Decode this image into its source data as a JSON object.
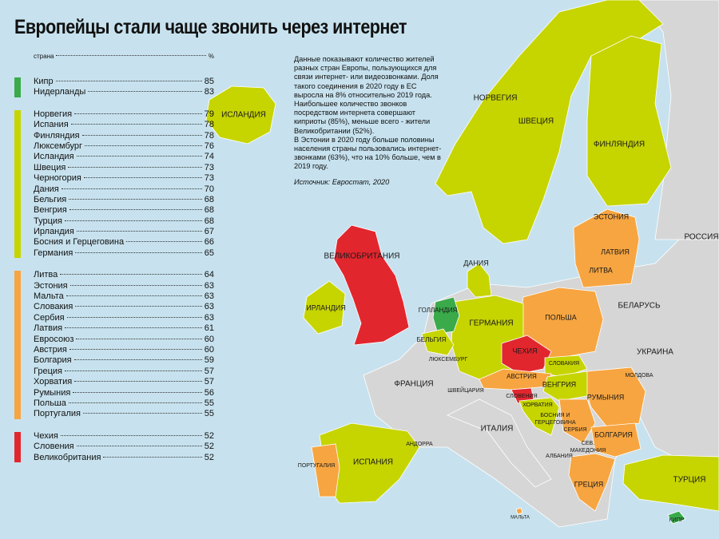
{
  "title": "Европейцы стали чаще звонить через интернет",
  "list": {
    "header": {
      "country": "страна",
      "unit": "%"
    },
    "groups": [
      {
        "color": "#3aaa4a",
        "rows": [
          {
            "country": "Кипр",
            "value": 85
          },
          {
            "country": "Нидерланды",
            "value": 83
          }
        ]
      },
      {
        "color": "#c6d400",
        "rows": [
          {
            "country": "Норвегия",
            "value": 79
          },
          {
            "country": "Испания",
            "value": 78
          },
          {
            "country": "Финляндия",
            "value": 78
          },
          {
            "country": "Люксембург",
            "value": 76
          },
          {
            "country": "Исландия",
            "value": 74
          },
          {
            "country": "Швеция",
            "value": 73
          },
          {
            "country": "Черногория",
            "value": 73
          },
          {
            "country": "Дания",
            "value": 70
          },
          {
            "country": "Бельгия",
            "value": 68
          },
          {
            "country": "Венгрия",
            "value": 68
          },
          {
            "country": "Турция",
            "value": 68
          },
          {
            "country": "Ирландия",
            "value": 67
          },
          {
            "country": "Босния и Герцеговина",
            "value": 66
          },
          {
            "country": "Германия",
            "value": 65
          }
        ]
      },
      {
        "color": "#f7a541",
        "rows": [
          {
            "country": "Литва",
            "value": 64
          },
          {
            "country": "Эстония",
            "value": 63
          },
          {
            "country": "Мальта",
            "value": 63
          },
          {
            "country": "Словакия",
            "value": 63
          },
          {
            "country": "Сербия",
            "value": 63
          },
          {
            "country": "Латвия",
            "value": 61
          },
          {
            "country": "Евросоюз",
            "value": 60
          },
          {
            "country": "Австрия",
            "value": 60
          },
          {
            "country": "Болгария",
            "value": 59
          },
          {
            "country": "Греция",
            "value": 57
          },
          {
            "country": "Хорватия",
            "value": 57
          },
          {
            "country": "Румыния",
            "value": 56
          },
          {
            "country": "Польша",
            "value": 55
          },
          {
            "country": "Португалия",
            "value": 55
          }
        ]
      },
      {
        "color": "#e2262e",
        "rows": [
          {
            "country": "Чехия",
            "value": 52
          },
          {
            "country": "Словения",
            "value": 52
          },
          {
            "country": "Великобритания",
            "value": 52
          }
        ]
      }
    ]
  },
  "description": [
    "Данные показывают количество жителей разных стран Европы, пользующихся для связи интернет- или видеозвонками. Доля такого соединения в 2020 году в ЕС выросла на 8% относительно 2019 года. Наибольшее количество звонков посредством интернета совершают киприоты (85%), меньше всего - жители Великобритании (52%).",
    "В Эстонии в 2020 году больше половины населения страны пользовались интернет-звонками (63%), что на 10% больше, чем в 2019 году."
  ],
  "source": "Источник: Евростат, 2020",
  "map_labels": [
    "ИСЛАНДИЯ",
    "НОРВЕГИЯ",
    "ШВЕЦИЯ",
    "ФИНЛЯНДИЯ",
    "ЭСТОНИЯ",
    "РОССИЯ",
    "ЛАТВИЯ",
    "ЛИТВА",
    "ВЕЛИКОБРИТАНИЯ",
    "ДАНИЯ",
    "ИРЛАНДИЯ",
    "ГОЛЛАНДИЯ",
    "БЕЛАРУСЬ",
    "ПОЛЬША",
    "ГЕРМАНИЯ",
    "БЕЛЬГИЯ",
    "ЧЕХИЯ",
    "УКРАИНА",
    "ЛЮКСЕМБУРГ",
    "СЛОВАКИЯ",
    "МОЛДОВА",
    "АВСТРИЯ",
    "ФРАНЦИЯ",
    "ВЕНГРИЯ",
    "ШВЕЙЦАРИЯ",
    "СЛОВЕНИЯ",
    "РУМЫНИЯ",
    "ХОРВАТИЯ",
    "БОСНИЯ И",
    "ГЕРЦЕГОВИНА",
    "СЕРБИЯ",
    "ИТАЛИЯ",
    "БОЛГАРИЯ",
    "АНДОРРА",
    "СЕВ.",
    "МАКЕДОНИЯ",
    "АЛБАНИЯ",
    "ПОРТУГАЛИЯ",
    "ИСПАНИЯ",
    "ГРЕЦИЯ",
    "ТУРЦИЯ",
    "МАЛЬТА",
    "КИПР"
  ]
}
